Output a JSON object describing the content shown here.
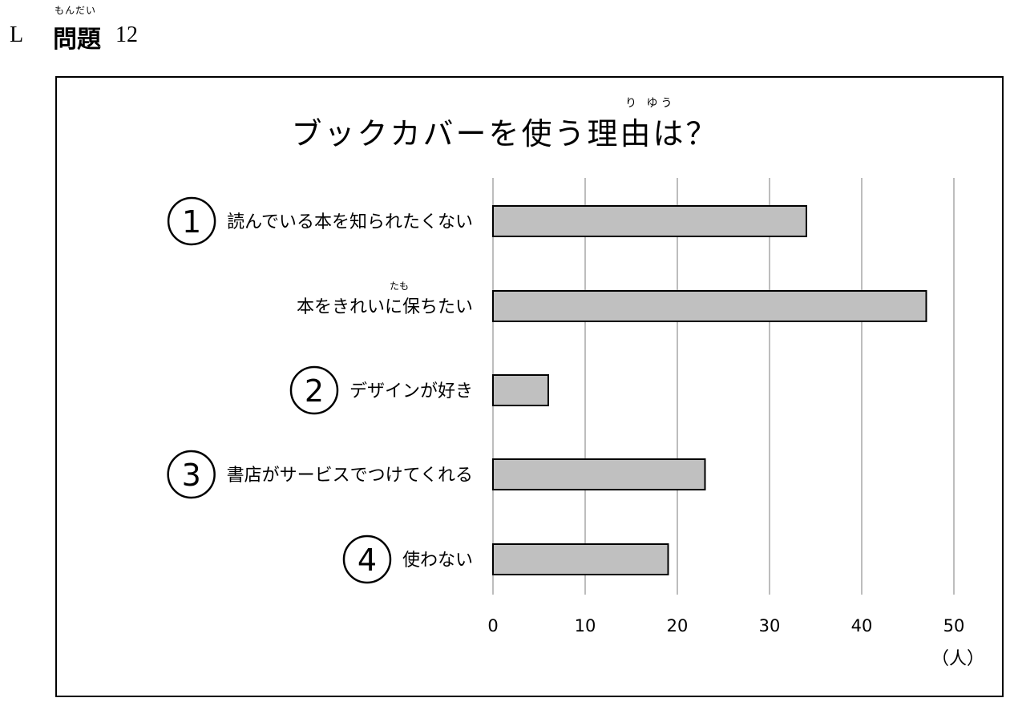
{
  "header": {
    "letter": "L",
    "ruby": "もんだい",
    "title": "問題",
    "number": "12"
  },
  "chart_data": {
    "type": "bar",
    "orientation": "horizontal",
    "title": "ブックカバーを使う理由は？",
    "title_ruby": "り ゆう",
    "categories": [
      "読んでいる本を知られたくない",
      "本をきれいに保ちたい",
      "デザインが好き",
      "書店がサービスでつけてくれる",
      "使わない"
    ],
    "category_markers": [
      "1",
      "",
      "2",
      "3",
      "4"
    ],
    "category_ruby": [
      "",
      "たも",
      "",
      "",
      ""
    ],
    "values": [
      34,
      47,
      6,
      23,
      19
    ],
    "xlim": [
      0,
      50
    ],
    "xticks": [
      0,
      10,
      20,
      30,
      40,
      50
    ],
    "xlabel": "（人）",
    "grid": true,
    "colors": {
      "bar": "#c0c0c0",
      "edge": "#000000",
      "grid": "#bdbdbd"
    }
  }
}
